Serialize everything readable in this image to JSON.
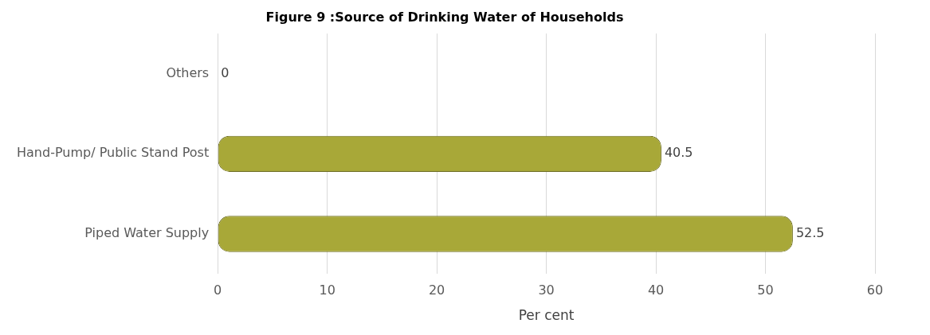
{
  "chart_data": {
    "type": "bar",
    "orientation": "horizontal",
    "title": "Figure 9 :Source of Drinking Water of Households",
    "xlabel": "Per cent",
    "categories": [
      "Others",
      "Hand-Pump/ Public Stand Post",
      "Piped Water Supply"
    ],
    "values": [
      0,
      40.5,
      52.5
    ],
    "color": "#a8a838",
    "data_labels": true,
    "xlim": [
      0,
      60
    ],
    "xticks": [
      0,
      10,
      20,
      30,
      40,
      50,
      60
    ],
    "grid": "x",
    "legend": false
  }
}
